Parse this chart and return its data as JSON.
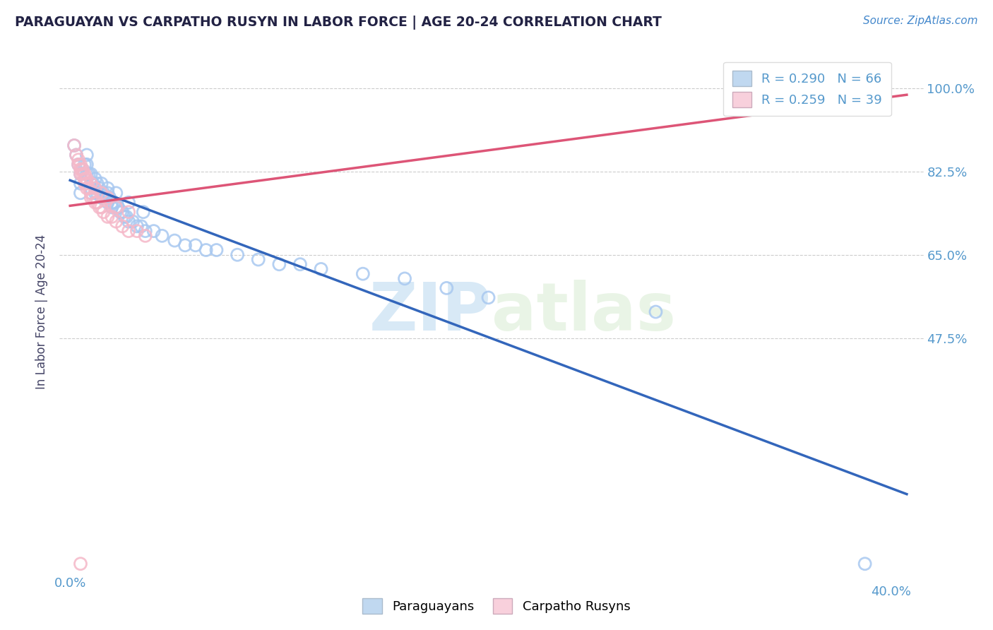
{
  "title": "PARAGUAYAN VS CARPATHO RUSYN IN LABOR FORCE | AGE 20-24 CORRELATION CHART",
  "source": "Source: ZipAtlas.com",
  "ylabel": "In Labor Force | Age 20-24",
  "watermark_zip": "ZIP",
  "watermark_atlas": "atlas",
  "blue_R": 0.29,
  "blue_N": 66,
  "pink_R": 0.259,
  "pink_N": 39,
  "blue_label": "Paraguayans",
  "pink_label": "Carpatho Rusyns",
  "x_max": 0.4,
  "y_min": 0.0,
  "y_max": 1.0,
  "ytick_vals": [
    0.475,
    0.65,
    0.825,
    1.0
  ],
  "ytick_labels": [
    "47.5%",
    "65.0%",
    "82.5%",
    "100.0%"
  ],
  "xtick_start_label": "0.0%",
  "xtick_end_label": "40.0%",
  "blue_color": "#a8c8f0",
  "blue_edge_color": "#88aade",
  "pink_color": "#f5b8c8",
  "pink_edge_color": "#e090a8",
  "blue_line_color": "#3366bb",
  "pink_line_color": "#dd5577",
  "legend_blue_fill": "#c0d8f0",
  "legend_pink_fill": "#f8d0dc",
  "title_color": "#222244",
  "source_color": "#4488cc",
  "axis_label_color": "#444466",
  "tick_label_color": "#5599cc",
  "grid_color": "#cccccc",
  "background_color": "#ffffff",
  "blue_x": [
    0.005,
    0.005,
    0.005,
    0.007,
    0.008,
    0.008,
    0.009,
    0.01,
    0.01,
    0.011,
    0.012,
    0.012,
    0.013,
    0.013,
    0.014,
    0.015,
    0.015,
    0.016,
    0.017,
    0.018,
    0.018,
    0.019,
    0.02,
    0.02,
    0.021,
    0.022,
    0.023,
    0.024,
    0.025,
    0.026,
    0.027,
    0.028,
    0.03,
    0.032,
    0.034,
    0.036,
    0.04,
    0.044,
    0.05,
    0.055,
    0.06,
    0.065,
    0.07,
    0.08,
    0.09,
    0.1,
    0.11,
    0.12,
    0.14,
    0.16,
    0.18,
    0.002,
    0.003,
    0.004,
    0.006,
    0.008,
    0.01,
    0.012,
    0.015,
    0.018,
    0.022,
    0.028,
    0.035,
    0.2,
    0.28,
    0.38
  ],
  "blue_y": [
    0.82,
    0.8,
    0.78,
    0.84,
    0.86,
    0.84,
    0.82,
    0.8,
    0.78,
    0.8,
    0.79,
    0.78,
    0.8,
    0.78,
    0.79,
    0.78,
    0.77,
    0.78,
    0.77,
    0.76,
    0.78,
    0.77,
    0.76,
    0.75,
    0.76,
    0.75,
    0.75,
    0.74,
    0.74,
    0.73,
    0.73,
    0.72,
    0.72,
    0.71,
    0.71,
    0.7,
    0.7,
    0.69,
    0.68,
    0.67,
    0.67,
    0.66,
    0.66,
    0.65,
    0.64,
    0.63,
    0.63,
    0.62,
    0.61,
    0.6,
    0.58,
    0.88,
    0.86,
    0.84,
    0.83,
    0.82,
    0.82,
    0.81,
    0.8,
    0.79,
    0.78,
    0.76,
    0.74,
    0.56,
    0.53,
    0.0
  ],
  "pink_x": [
    0.004,
    0.005,
    0.005,
    0.006,
    0.007,
    0.007,
    0.008,
    0.008,
    0.009,
    0.01,
    0.01,
    0.011,
    0.012,
    0.013,
    0.014,
    0.015,
    0.016,
    0.018,
    0.02,
    0.022,
    0.025,
    0.028,
    0.032,
    0.036,
    0.002,
    0.003,
    0.004,
    0.005,
    0.006,
    0.007,
    0.008,
    0.01,
    0.012,
    0.015,
    0.018,
    0.022,
    0.028,
    0.005,
    0.38
  ],
  "pink_y": [
    0.84,
    0.83,
    0.82,
    0.82,
    0.81,
    0.8,
    0.8,
    0.79,
    0.79,
    0.78,
    0.77,
    0.77,
    0.76,
    0.76,
    0.75,
    0.75,
    0.74,
    0.73,
    0.73,
    0.72,
    0.71,
    0.7,
    0.7,
    0.69,
    0.88,
    0.86,
    0.85,
    0.84,
    0.83,
    0.82,
    0.81,
    0.8,
    0.79,
    0.78,
    0.77,
    0.75,
    0.74,
    0.0,
    1.0
  ]
}
